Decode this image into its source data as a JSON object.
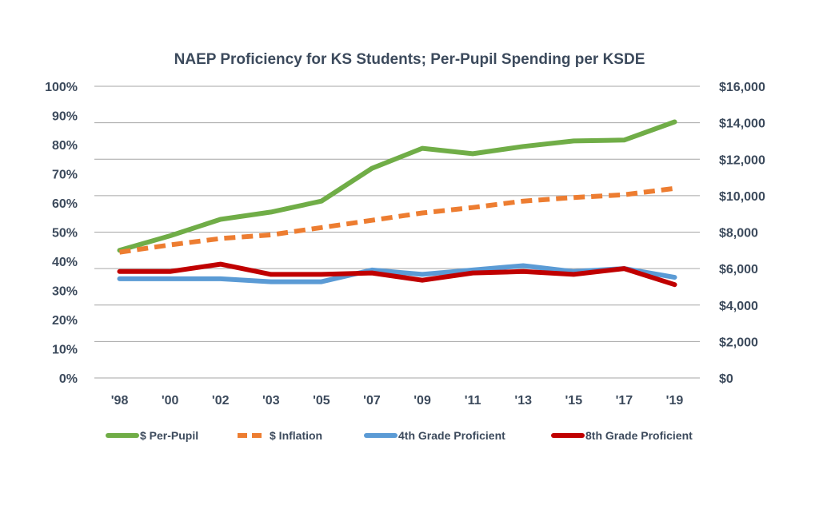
{
  "chart_data": {
    "type": "line",
    "title": "NAEP Proficiency for KS Students; Per-Pupil Spending per KSDE",
    "categories": [
      "'98",
      "'00",
      "'02",
      "'03",
      "'05",
      "'07",
      "'09",
      "'11",
      "'13",
      "'15",
      "'17",
      "'19"
    ],
    "y_left": {
      "range": [
        0,
        100
      ],
      "tick_labels": [
        "100%",
        "90%",
        "80%",
        "70%",
        "60%",
        "50%",
        "40%",
        "30%",
        "20%",
        "10%",
        "0%"
      ]
    },
    "y_right": {
      "range": [
        0,
        16000
      ],
      "tick_labels": [
        "$16,000",
        "$14,000",
        "$12,000",
        "$10,000",
        "$8,000",
        "$6,000",
        "$4,000",
        "$2,000",
        "$0"
      ]
    },
    "grid": true,
    "legend_position": "bottom",
    "series": [
      {
        "name": "$ Per-Pupil",
        "axis": "right",
        "color": "#70ad47",
        "dashed": false,
        "values": [
          7000,
          7800,
          8700,
          9100,
          9700,
          11500,
          12600,
          12300,
          12700,
          13000,
          13050,
          14050
        ]
      },
      {
        "name": "$ Inflation",
        "axis": "right",
        "color": "#ed7d31",
        "dashed": true,
        "values": [
          6900,
          7300,
          7650,
          7850,
          8250,
          8650,
          9050,
          9350,
          9700,
          9900,
          10050,
          10400
        ]
      },
      {
        "name": "4th Grade Proficient",
        "axis": "left",
        "color": "#5b9bd5",
        "dashed": false,
        "values": [
          34,
          34,
          34,
          33,
          33,
          37,
          35.5,
          37,
          38.5,
          36.5,
          37.5,
          34.5
        ]
      },
      {
        "name": "8th Grade Proficient",
        "axis": "left",
        "color": "#c00000",
        "dashed": false,
        "values": [
          36.5,
          36.5,
          39,
          35.5,
          35.5,
          36,
          33.5,
          36,
          36.5,
          35.5,
          37.5,
          32
        ]
      }
    ]
  }
}
